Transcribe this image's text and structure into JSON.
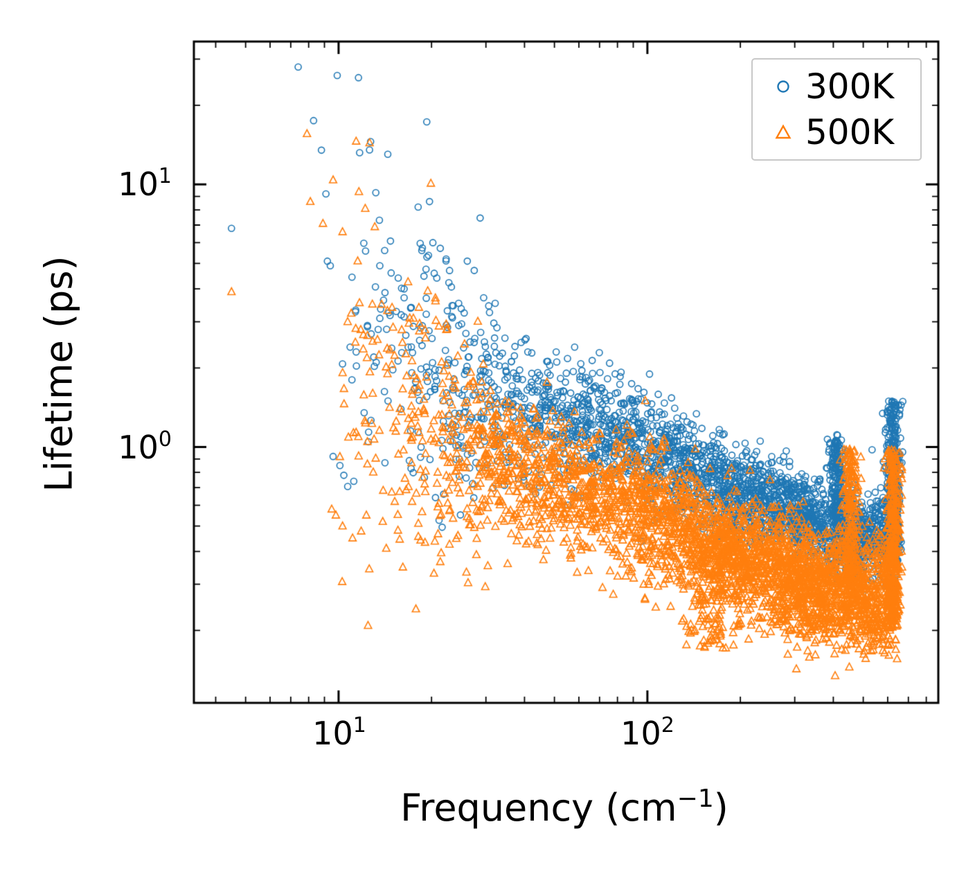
{
  "axes": {
    "ylabel": "Lifetime (ps)",
    "xlabel_prefix": "Frequency (cm",
    "xlabel_sup": "−1",
    "xlabel_suffix": ")",
    "x_ticks": [
      {
        "base": "10",
        "exp": "1",
        "value": 10
      },
      {
        "base": "10",
        "exp": "2",
        "value": 100
      }
    ],
    "y_ticks": [
      {
        "base": "10",
        "exp": "1",
        "value": 10
      },
      {
        "base": "10",
        "exp": "0",
        "value": 1
      }
    ]
  },
  "legend": {
    "items": [
      {
        "label": "300K",
        "marker": "circle",
        "color": "#1f77b4"
      },
      {
        "label": "500K",
        "marker": "triangle",
        "color": "#ff7f0e"
      }
    ]
  },
  "chart_data": {
    "type": "scatter",
    "title": "",
    "xlabel": "Frequency (cm^-1)",
    "ylabel": "Lifetime (ps)",
    "xscale": "log",
    "yscale": "log",
    "xlim": [
      3.4,
      875
    ],
    "ylim": [
      0.106,
      35
    ],
    "grid": false,
    "legend_position": "upper right",
    "series": [
      {
        "name": "300K",
        "marker": "circle",
        "color": "#1f77b4",
        "render_seed": 42,
        "cloud": {
          "count": 2600,
          "x_min": 9.3,
          "x_max": 650,
          "x_bias": 0.5
        },
        "trend_log10": [
          [
            0.95,
            0.55
          ],
          [
            1.05,
            0.46
          ],
          [
            1.15,
            0.38
          ],
          [
            1.3,
            0.3
          ],
          [
            1.48,
            0.2
          ],
          [
            1.6,
            0.14
          ],
          [
            1.7,
            0.1
          ],
          [
            1.9,
            0.05
          ],
          [
            2.0,
            0.0
          ],
          [
            2.1,
            -0.06
          ],
          [
            2.18,
            -0.11
          ],
          [
            2.3,
            -0.17
          ],
          [
            2.48,
            -0.25
          ],
          [
            2.6,
            -0.31
          ],
          [
            2.7,
            -0.35
          ],
          [
            2.81,
            -0.33
          ]
        ],
        "spread_dex": [
          [
            0.95,
            0.4
          ],
          [
            1.15,
            0.33
          ],
          [
            1.3,
            0.26
          ],
          [
            1.48,
            0.17
          ],
          [
            1.7,
            0.12
          ],
          [
            2.0,
            0.1
          ],
          [
            2.3,
            0.085
          ],
          [
            2.6,
            0.075
          ],
          [
            2.81,
            0.08
          ]
        ],
        "columns": [
          {
            "x": 410,
            "y_min": 0.52,
            "y_max": 1.12,
            "count": 180,
            "x_jitter": 0.012
          },
          {
            "x": 625,
            "y_min": 0.4,
            "y_max": 1.5,
            "count": 320,
            "x_jitter": 0.012
          }
        ],
        "outliers": [
          [
            4.5,
            6.8
          ],
          [
            7.4,
            28
          ],
          [
            8.3,
            17.5
          ],
          [
            8.8,
            13.5
          ],
          [
            9.9,
            26
          ],
          [
            11.6,
            25.5
          ],
          [
            11.7,
            13.2
          ],
          [
            9.1,
            9.2
          ],
          [
            13.2,
            9.3
          ],
          [
            14.1,
            5.6
          ],
          [
            14.8,
            4.6
          ],
          [
            15.6,
            4.4
          ],
          [
            16.3,
            4.0
          ],
          [
            17.2,
            3.4
          ],
          [
            18.1,
            8.2
          ],
          [
            18.6,
            5.6
          ],
          [
            19.3,
            17.3
          ],
          [
            19.7,
            8.6
          ],
          [
            20.2,
            6.0
          ],
          [
            20.8,
            4.4
          ],
          [
            12.4,
            2.9
          ],
          [
            13.6,
            4.9
          ],
          [
            16.8,
            2.4
          ],
          [
            22.5,
            3.3
          ],
          [
            24.5,
            2.9
          ],
          [
            27.5,
            4.7
          ],
          [
            29.5,
            3.7
          ],
          [
            32,
            2.6
          ],
          [
            39,
            2.5
          ],
          [
            41,
            2.3
          ],
          [
            9.6,
            0.92
          ],
          [
            10.1,
            0.85
          ],
          [
            10.4,
            0.78
          ],
          [
            11.2,
            0.74
          ],
          [
            12.1,
            1.35
          ],
          [
            13.0,
            2.2
          ],
          [
            10.9,
            2.4
          ],
          [
            11.4,
            2.3
          ],
          [
            9.4,
            4.9
          ],
          [
            9.2,
            5.1
          ]
        ]
      },
      {
        "name": "500K",
        "marker": "triangle",
        "color": "#ff7f0e",
        "render_seed": 1337,
        "cloud": {
          "count": 3200,
          "x_min": 9.3,
          "x_max": 650,
          "x_bias": 0.5
        },
        "trend_log10": [
          [
            0.95,
            0.28
          ],
          [
            1.05,
            0.2
          ],
          [
            1.15,
            0.12
          ],
          [
            1.3,
            0.02
          ],
          [
            1.48,
            -0.05
          ],
          [
            1.6,
            -0.1
          ],
          [
            1.7,
            -0.14
          ],
          [
            1.9,
            -0.2
          ],
          [
            2.0,
            -0.24
          ],
          [
            2.1,
            -0.31
          ],
          [
            2.18,
            -0.36
          ],
          [
            2.3,
            -0.42
          ],
          [
            2.48,
            -0.5
          ],
          [
            2.6,
            -0.55
          ],
          [
            2.7,
            -0.58
          ],
          [
            2.81,
            -0.56
          ]
        ],
        "spread_dex": [
          [
            0.95,
            0.35
          ],
          [
            1.15,
            0.3
          ],
          [
            1.3,
            0.24
          ],
          [
            1.48,
            0.16
          ],
          [
            1.7,
            0.12
          ],
          [
            2.0,
            0.12
          ],
          [
            2.3,
            0.11
          ],
          [
            2.6,
            0.1
          ],
          [
            2.81,
            0.1
          ]
        ],
        "columns": [
          {
            "x": 160,
            "y_min": 0.17,
            "y_max": 0.45,
            "count": 150,
            "x_jitter": 0.05
          },
          {
            "x": 300,
            "y_min": 0.2,
            "y_max": 0.4,
            "count": 120,
            "x_jitter": 0.06
          },
          {
            "x": 455,
            "y_min": 0.3,
            "y_max": 1.0,
            "count": 220,
            "x_jitter": 0.015
          },
          {
            "x": 625,
            "y_min": 0.22,
            "y_max": 1.0,
            "count": 320,
            "x_jitter": 0.012
          }
        ],
        "outliers": [
          [
            4.5,
            3.9
          ],
          [
            7.9,
            15.6
          ],
          [
            8.1,
            8.6
          ],
          [
            8.9,
            7.1
          ],
          [
            9.6,
            10.4
          ],
          [
            10.3,
            6.6
          ],
          [
            11.4,
            14.6
          ],
          [
            12.2,
            8.1
          ],
          [
            12.6,
            14.4
          ],
          [
            13.1,
            6.9
          ],
          [
            14.9,
            3.4
          ],
          [
            16.1,
            2.5
          ],
          [
            17.0,
            3.1
          ],
          [
            18.2,
            3.4
          ],
          [
            19.1,
            2.6
          ],
          [
            19.9,
            10.1
          ],
          [
            20.6,
            3.6
          ],
          [
            21.9,
            1.95
          ],
          [
            23.8,
            1.8
          ],
          [
            26.2,
            1.7
          ],
          [
            10.7,
            3.0
          ],
          [
            11.8,
            2.8
          ],
          [
            9.8,
            0.55
          ],
          [
            10.3,
            0.5
          ],
          [
            11.1,
            0.45
          ],
          [
            12.3,
            0.55
          ],
          [
            13.9,
            0.52
          ],
          [
            15.2,
            0.62
          ],
          [
            16.4,
            0.76
          ],
          [
            17.3,
            0.62
          ],
          [
            18.4,
            0.82
          ],
          [
            9.5,
            0.58
          ],
          [
            12.9,
            1.6
          ],
          [
            14.4,
            1.9
          ],
          [
            15.8,
            1.4
          ]
        ]
      }
    ]
  }
}
